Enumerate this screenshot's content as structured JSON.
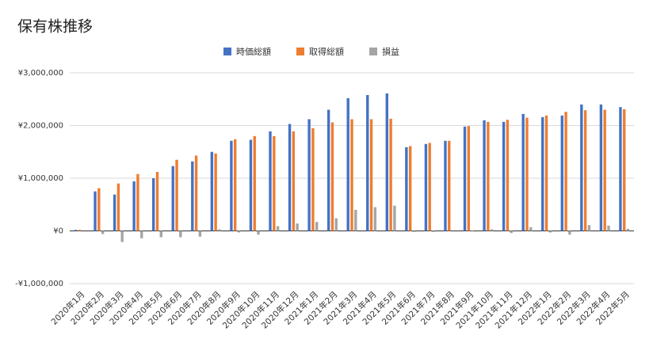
{
  "chart_data": {
    "type": "bar",
    "title": "保有株推移",
    "categories": [
      "2020年1月",
      "2020年2月",
      "2020年3月",
      "2020年4月",
      "2020年5月",
      "2020年6月",
      "2020年7月",
      "2020年8月",
      "2020年9月",
      "2020年10月",
      "2020年11月",
      "2020年12月",
      "2021年1月",
      "2021年2月",
      "2021年3月",
      "2021年4月",
      "2021年5月",
      "2021年6月",
      "2021年7月",
      "2021年8月",
      "2021年9月",
      "2021年10月",
      "2021年11月",
      "2021年12月",
      "2022年1月",
      "2022年2月",
      "2022年3月",
      "2022年4月",
      "2022年5月"
    ],
    "series": [
      {
        "name": "時価総額",
        "color": "#4472c4",
        "values": [
          20000,
          750000,
          690000,
          940000,
          1000000,
          1230000,
          1320000,
          1500000,
          1710000,
          1730000,
          1890000,
          2030000,
          2120000,
          2300000,
          2520000,
          2580000,
          2610000,
          1590000,
          1650000,
          1710000,
          1980000,
          2100000,
          2070000,
          2220000,
          2160000,
          2190000,
          2400000,
          2400000,
          2350000
        ]
      },
      {
        "name": "取得総額",
        "color": "#ed7d31",
        "values": [
          20000,
          810000,
          900000,
          1080000,
          1120000,
          1350000,
          1430000,
          1470000,
          1740000,
          1800000,
          1800000,
          1890000,
          1950000,
          2060000,
          2120000,
          2120000,
          2130000,
          1610000,
          1670000,
          1710000,
          1990000,
          2070000,
          2110000,
          2150000,
          2190000,
          2260000,
          2290000,
          2300000,
          2310000
        ]
      },
      {
        "name": "損益",
        "color": "#a5a5a5",
        "values": [
          0,
          -60000,
          -210000,
          -140000,
          -120000,
          -120000,
          -110000,
          30000,
          -30000,
          -70000,
          90000,
          140000,
          170000,
          240000,
          400000,
          450000,
          480000,
          -20000,
          -20000,
          0,
          -10000,
          30000,
          -40000,
          70000,
          -30000,
          -70000,
          110000,
          100000,
          40000
        ]
      }
    ],
    "ylim": [
      -1000000,
      3000000
    ],
    "yticks": [
      {
        "value": -1000000,
        "label": "-¥1,000,000"
      },
      {
        "value": 0,
        "label": "¥0"
      },
      {
        "value": 1000000,
        "label": "¥1,000,000"
      },
      {
        "value": 2000000,
        "label": "¥2,000,000"
      },
      {
        "value": 3000000,
        "label": "¥3,000,000"
      }
    ],
    "grid": true,
    "legend": "top"
  }
}
